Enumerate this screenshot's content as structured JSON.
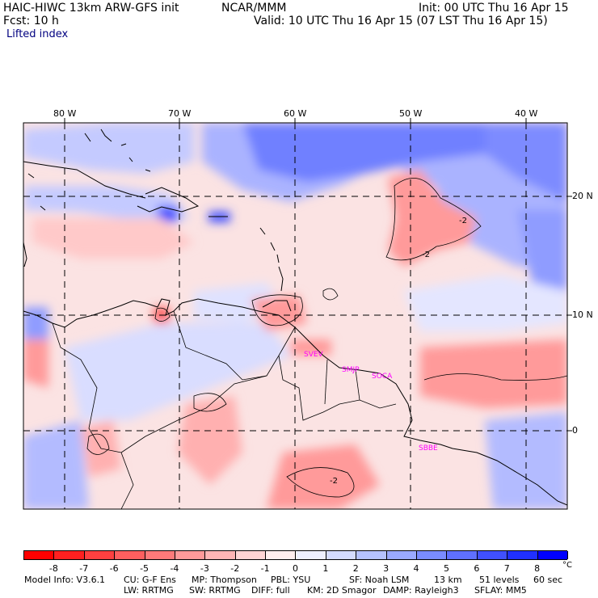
{
  "header": {
    "model": "HAIC-HIWC 13km ARW-GFS init",
    "org": "NCAR/MMM",
    "init": "Init: 00 UTC Thu 16 Apr 15",
    "fcst": "Fcst:   10 h",
    "valid": "Valid: 10 UTC Thu 16 Apr 15 (07 LST Thu 16 Apr 15)",
    "field": "Lifted index"
  },
  "map": {
    "lon_labels": [
      "80 W",
      "70 W",
      "60 W",
      "50 W",
      "40 W"
    ],
    "lat_labels": [
      "20 N",
      "10 N",
      "0"
    ],
    "station_labels": [
      "SVEV",
      "SMJP",
      "SOCA",
      "SBBE"
    ],
    "contour_labels": [
      "-2",
      "-2",
      "-2"
    ]
  },
  "colorbar": {
    "unit": "°C",
    "ticks": [
      "-8",
      "-7",
      "-6",
      "-5",
      "-4",
      "-3",
      "-2",
      "-1",
      "0",
      "1",
      "2",
      "3",
      "4",
      "5",
      "6",
      "7",
      "8"
    ],
    "colors": [
      "#ff0000",
      "#ff2020",
      "#ff4040",
      "#ff5f5f",
      "#ff7a7a",
      "#ff9a9a",
      "#ffb5b5",
      "#ffd5d5",
      "#ffeeee",
      "#eef0ff",
      "#d5dcff",
      "#b5c2ff",
      "#9aa9ff",
      "#7a8cff",
      "#5f70ff",
      "#4050ff",
      "#2030ff",
      "#0000ff"
    ]
  },
  "footer": {
    "line1": [
      "Model Info: V3.6.1",
      "CU: G-F Ens",
      "MP: Thompson",
      "PBL: YSU",
      "SF: Noah LSM",
      "13 km",
      "51 levels",
      "60 sec"
    ],
    "line2": [
      "LW: RRTMG",
      "SW: RRTMG",
      "DIFF: full",
      "KM: 2D Smagor",
      "DAMP: Rayleigh3",
      "SFLAY: MM5"
    ]
  },
  "colors": {
    "station_label": "#ff00ff",
    "header_small": "#000080"
  }
}
